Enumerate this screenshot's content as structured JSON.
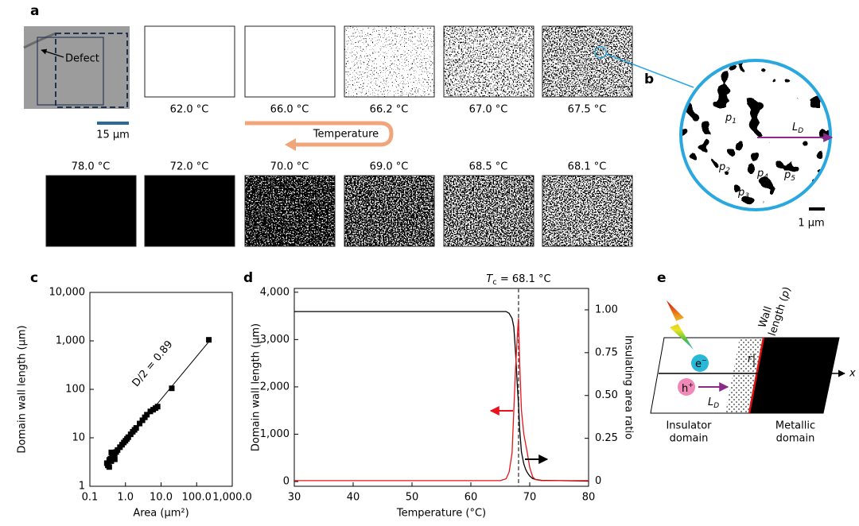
{
  "panels": {
    "a": {
      "label": "a",
      "defect": "Defect",
      "scale": "15 µm",
      "temps_top": [
        "62.0 °C",
        "66.0 °C",
        "66.2 °C",
        "67.0 °C",
        "67.5 °C"
      ],
      "arrow": "Temperature",
      "temps_bottom": [
        "78.0 °C",
        "72.0 °C",
        "70.0 °C",
        "69.0 °C",
        "68.5 °C",
        "68.1 °C"
      ]
    },
    "b": {
      "label": "b",
      "p_labels": [
        {
          "text": "p",
          "sub": "1"
        },
        {
          "text": "p",
          "sub": "2"
        },
        {
          "text": "p",
          "sub": "3"
        },
        {
          "text": "p",
          "sub": "4"
        },
        {
          "text": "p",
          "sub": "5"
        }
      ],
      "length": {
        "text": "L",
        "sub": "D"
      },
      "scale": "1 µm"
    },
    "c": {
      "label": "c"
    },
    "d": {
      "label": "d"
    },
    "e": {
      "label": "e",
      "wall": "Wall",
      "wall_length": "length (",
      "wall_p": "p",
      "wall_close": ")",
      "electron": "e",
      "electron_sup": "−",
      "hole": "h",
      "hole_sup": "+",
      "length": {
        "text": "L",
        "sub": "D"
      },
      "axis": "x",
      "radius": "r",
      "insulator": [
        "Insulator",
        "domain"
      ],
      "metallic": [
        "Metallic",
        "domain"
      ]
    }
  },
  "chart_data": [
    {
      "type": "scatter",
      "xlog": true,
      "ylog": true,
      "xlabel": "Area (µm²)",
      "ylabel": "Domain wall length (µm)",
      "color": "#000000",
      "xlim": [
        0.1,
        1000
      ],
      "ylim": [
        1,
        10000
      ],
      "xticks": [
        0.1,
        {
          "value": 1,
          "label": "1.0"
        },
        {
          "value": 10,
          "label": "10.0"
        },
        {
          "value": 100,
          "label": "100.0"
        },
        {
          "value": 1000,
          "label": "1,000.0"
        }
      ],
      "yticks": [
        1,
        10,
        100,
        {
          "value": 1000,
          "label": "1,000"
        },
        {
          "value": 10000,
          "label": "10,000"
        }
      ],
      "x": [
        0.3,
        0.32,
        0.35,
        0.35,
        0.38,
        0.4,
        0.4,
        0.42,
        0.45,
        0.5,
        0.5,
        0.55,
        0.6,
        0.7,
        0.8,
        0.9,
        1.0,
        1.1,
        1.2,
        1.4,
        1.6,
        1.8,
        2.0,
        2.5,
        3,
        3.5,
        4,
        5,
        6,
        7,
        8,
        20,
        220
      ],
      "y": [
        3.0,
        2.7,
        3.5,
        2.5,
        3.7,
        3.3,
        5.0,
        4.1,
        4.3,
        4.7,
        3.6,
        5.1,
        5.6,
        6.4,
        7.2,
        8.0,
        8.7,
        9.5,
        10.3,
        11.8,
        13.3,
        14.6,
        16,
        19.7,
        23,
        26.5,
        30,
        35,
        38,
        41,
        44,
        105,
        1050
      ],
      "fit": {
        "x": [
          0.3,
          230
        ],
        "y": [
          2.8,
          1000
        ]
      },
      "annotation": "D/2 = 0.89"
    },
    {
      "type": "line",
      "xlabel": "Temperature (°C)",
      "ylabel": "Domain wall length (µm)",
      "y2label": "Insulating area ratio",
      "xlim": [
        30,
        80
      ],
      "ylim": [
        -100,
        4080
      ],
      "y2lim": [
        -0.03,
        1.125
      ],
      "xticks": [
        30,
        40,
        50,
        60,
        70,
        80
      ],
      "yticks": [
        0,
        {
          "value": 1000,
          "label": "1,000"
        },
        {
          "value": 2000,
          "label": "2,000"
        },
        {
          "value": 3000,
          "label": "3,000"
        },
        {
          "value": 4000,
          "label": "4,000"
        }
      ],
      "y2ticks": [
        0,
        0.25,
        {
          "value": 0.5,
          "label": "0.50"
        },
        0.75,
        {
          "value": 1,
          "label": "1.00"
        }
      ],
      "x": [
        30,
        40,
        50,
        60,
        65,
        66,
        66.5,
        67,
        67.3,
        67.6,
        67.9,
        68.1,
        68.3,
        68.6,
        69,
        69.3,
        69.6,
        70,
        70.5,
        71,
        72,
        80
      ],
      "series": [
        {
          "name": "Domain wall length",
          "color": "#e8141b",
          "values": [
            20,
            20,
            20,
            20,
            20,
            60,
            200,
            600,
            1500,
            2400,
            3100,
            3450,
            2500,
            1500,
            1000,
            800,
            600,
            300,
            100,
            40,
            20,
            20
          ]
        },
        {
          "name": "Insulating area ratio",
          "color": "#000000",
          "axis": "y2",
          "values": [
            0.99,
            0.99,
            0.99,
            0.99,
            0.99,
            0.99,
            0.98,
            0.95,
            0.9,
            0.75,
            0.55,
            0.45,
            0.3,
            0.17,
            0.1,
            0.07,
            0.05,
            0.03,
            0.015,
            0.01,
            0.005,
            0
          ]
        }
      ],
      "tc": 68.1,
      "annotation": {
        "text": "T",
        "sub": "c",
        "rest": " = 68.1 °C"
      }
    }
  ]
}
